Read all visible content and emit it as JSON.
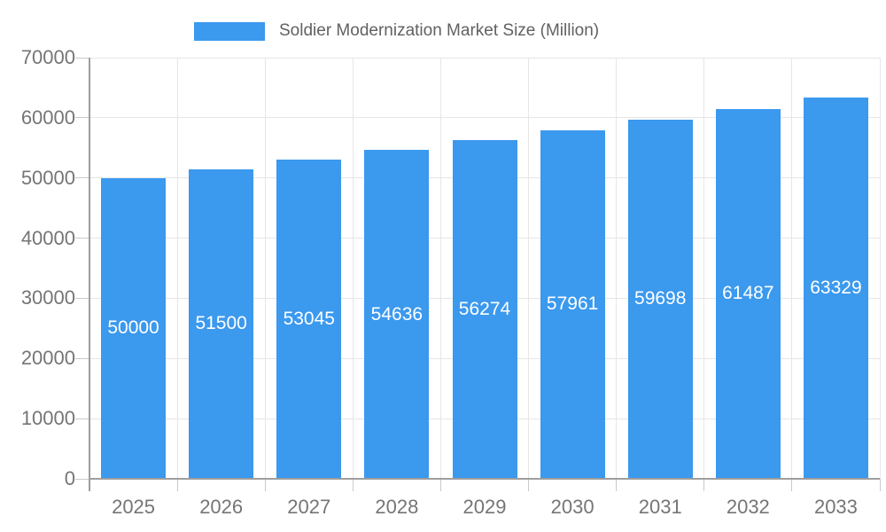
{
  "chart_data": {
    "type": "bar",
    "title": "Soldier Modernization Market Size (Million)",
    "legend": "Soldier Modernization Market Size (Million)",
    "legend_position": "top-center",
    "categories": [
      "2025",
      "2026",
      "2027",
      "2028",
      "2029",
      "2030",
      "2031",
      "2032",
      "2033"
    ],
    "values": [
      50000,
      51500,
      53045,
      54636,
      56274,
      57961,
      59698,
      61487,
      63329
    ],
    "xlabel": "",
    "ylabel": "",
    "ylim": [
      0,
      70000
    ],
    "yticks": [
      0,
      10000,
      20000,
      30000,
      40000,
      50000,
      60000,
      70000
    ],
    "grid": true,
    "bar_value_labels_visible": true,
    "colors": {
      "bar": "#3b99ee",
      "bar_label": "#ffffff",
      "axis_text": "#757575",
      "legend_text": "#616161",
      "grid_line": "#e6e6e6",
      "axis_line": "#9e9e9e",
      "tick": "#c9c9c9",
      "background": "#ffffff"
    }
  }
}
